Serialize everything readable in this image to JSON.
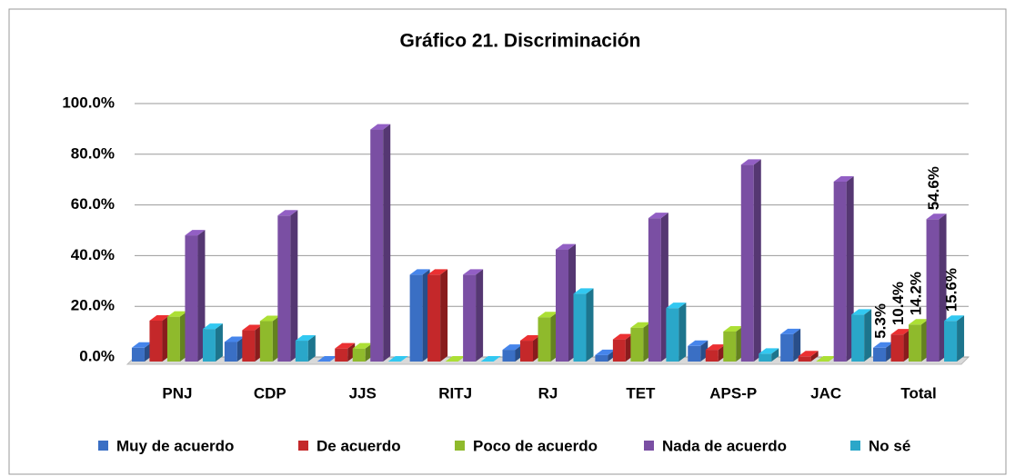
{
  "chart_data": {
    "type": "bar3d",
    "title": "Gráfico 21. Discriminación",
    "categories": [
      "PNJ",
      "CDP",
      "JJS",
      "RITJ",
      "RJ",
      "TET",
      "APS-P",
      "JAC",
      "Total"
    ],
    "series": [
      {
        "name": "Muy de acuerdo",
        "color": "#3a6fc4",
        "values": [
          5.3,
          7.5,
          0,
          33.3,
          4.5,
          2.5,
          6,
          10.5,
          5.3
        ],
        "value_labels": [
          null,
          null,
          null,
          null,
          null,
          null,
          null,
          null,
          "5.3%"
        ]
      },
      {
        "name": "De acuerdo",
        "color": "#c4282a",
        "values": [
          15.7,
          12,
          5,
          33.3,
          8,
          8.5,
          4.5,
          2,
          10.4
        ],
        "value_labels": [
          null,
          null,
          null,
          null,
          null,
          null,
          null,
          null,
          "10.4%"
        ]
      },
      {
        "name": "Poco de acuerdo",
        "color": "#8fba2c",
        "values": [
          17.2,
          15.5,
          5,
          0,
          17,
          13,
          11.5,
          0,
          14.2
        ],
        "value_labels": [
          null,
          null,
          null,
          null,
          null,
          null,
          null,
          null,
          "14.2%"
        ]
      },
      {
        "name": "Nada de acuerdo",
        "color": "#7a4fa3",
        "values": [
          48.4,
          56,
          89,
          33.3,
          43,
          55,
          75.5,
          69,
          54.6
        ],
        "value_labels": [
          null,
          null,
          null,
          null,
          null,
          null,
          null,
          null,
          "54.6%"
        ]
      },
      {
        "name": "No sé",
        "color": "#2aa7c9",
        "values": [
          12.5,
          8,
          0,
          0,
          26,
          20.5,
          3,
          18,
          15.6
        ],
        "value_labels": [
          null,
          null,
          null,
          null,
          null,
          null,
          null,
          null,
          "15.6%"
        ]
      }
    ],
    "ylim": [
      0,
      100
    ],
    "yticks": [
      {
        "value": 0,
        "label": "0.0%"
      },
      {
        "value": 20,
        "label": "20.0%"
      },
      {
        "value": 40,
        "label": "40.0%"
      },
      {
        "value": 60,
        "label": "60.0%"
      },
      {
        "value": 80,
        "label": "80.0%"
      },
      {
        "value": 100,
        "label": "100.0%"
      }
    ],
    "grid": true,
    "legend": "bottom"
  }
}
